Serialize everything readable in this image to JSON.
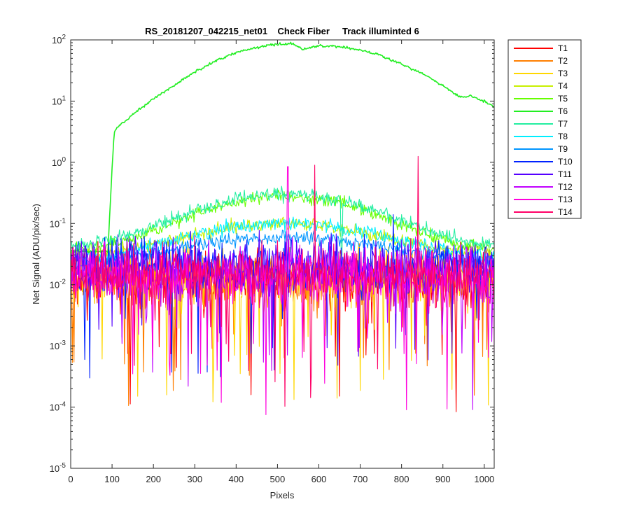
{
  "chart_data": {
    "type": "line",
    "title": "RS_20181207_042215_net01    Check Fiber     Track illuminted 6",
    "xlabel": "Pixels",
    "ylabel": "Net Signal (ADU/pix/sec)",
    "xlim": [
      0,
      1024
    ],
    "ylim": [
      1e-05,
      100
    ],
    "yscale": "log",
    "grid": false,
    "legend_position": "outside-right",
    "x_ticks": [
      {
        "value": 0,
        "label": "0"
      },
      {
        "value": 100,
        "label": "100"
      },
      {
        "value": 200,
        "label": "200"
      },
      {
        "value": 300,
        "label": "300"
      },
      {
        "value": 400,
        "label": "400"
      },
      {
        "value": 500,
        "label": "500"
      },
      {
        "value": 600,
        "label": "600"
      },
      {
        "value": 700,
        "label": "700"
      },
      {
        "value": 800,
        "label": "800"
      },
      {
        "value": 900,
        "label": "900"
      },
      {
        "value": 1000,
        "label": "1000"
      }
    ],
    "y_ticks": [
      {
        "value": 1e-05,
        "base": "10",
        "exp": "-5"
      },
      {
        "value": 0.0001,
        "base": "10",
        "exp": "-4"
      },
      {
        "value": 0.001,
        "base": "10",
        "exp": "-3"
      },
      {
        "value": 0.01,
        "base": "10",
        "exp": "-2"
      },
      {
        "value": 0.1,
        "base": "10",
        "exp": "-1"
      },
      {
        "value": 1,
        "base": "10",
        "exp": "0"
      },
      {
        "value": 10,
        "base": "10",
        "exp": "1"
      },
      {
        "value": 100,
        "base": "10",
        "exp": "2"
      }
    ],
    "series": [
      {
        "name": "T1",
        "color": "#ff0000",
        "profile": "noise",
        "level": 0.012,
        "spikes": []
      },
      {
        "name": "T2",
        "color": "#ff7f00",
        "profile": "noise",
        "level": 0.012,
        "spikes": []
      },
      {
        "name": "T3",
        "color": "#ffd700",
        "profile": "noise",
        "level": 0.013,
        "spikes": []
      },
      {
        "name": "T4",
        "color": "#c8f000",
        "profile": "dome",
        "base": 0.03,
        "peak": 0.1,
        "center": 520,
        "width": 260,
        "spikes": []
      },
      {
        "name": "T5",
        "color": "#66ff00",
        "profile": "dome",
        "base": 0.035,
        "peak": 0.28,
        "center": 520,
        "width": 240,
        "spikes": []
      },
      {
        "name": "T6",
        "color": "#22ee22",
        "x": [
          0,
          90,
          100,
          105,
          110,
          150,
          200,
          250,
          300,
          350,
          400,
          450,
          500,
          530,
          550,
          560,
          570,
          600,
          650,
          700,
          750,
          800,
          850,
          900,
          930,
          945,
          965,
          1000,
          1024
        ],
        "y": [
          0.035,
          0.035,
          0.8,
          3.0,
          3.6,
          6.0,
          11.0,
          18.0,
          30.0,
          45.0,
          62.0,
          75.0,
          85.0,
          88.0,
          80.0,
          70.0,
          72.0,
          80.0,
          78.0,
          68.0,
          55.0,
          40.0,
          28.0,
          18.0,
          13.0,
          11.5,
          12.0,
          10.0,
          8.0
        ]
      },
      {
        "name": "T7",
        "color": "#22eea0",
        "profile": "dome",
        "base": 0.04,
        "peak": 0.3,
        "center": 520,
        "width": 250,
        "spikes": [
          {
            "x": 655,
            "y": 0.03
          }
        ]
      },
      {
        "name": "T8",
        "color": "#00eeff",
        "profile": "dome",
        "base": 0.025,
        "peak": 0.1,
        "center": 520,
        "width": 280,
        "spikes": []
      },
      {
        "name": "T9",
        "color": "#0095ff",
        "profile": "dome",
        "base": 0.02,
        "peak": 0.06,
        "center": 520,
        "width": 300,
        "spikes": []
      },
      {
        "name": "T10",
        "color": "#0022ff",
        "profile": "noise",
        "level": 0.02,
        "spikes": [
          {
            "x": 780,
            "y": 0.14
          }
        ]
      },
      {
        "name": "T11",
        "color": "#5500ff",
        "profile": "noise",
        "level": 0.02,
        "spikes": []
      },
      {
        "name": "T12",
        "color": "#c000ff",
        "profile": "noise",
        "level": 0.015,
        "spikes": []
      },
      {
        "name": "T13",
        "color": "#ff00dd",
        "profile": "noise",
        "level": 0.014,
        "spikes": [
          {
            "x": 525,
            "y": 0.85
          }
        ]
      },
      {
        "name": "T14",
        "color": "#ff0066",
        "profile": "noise",
        "level": 0.014,
        "spikes": [
          {
            "x": 590,
            "y": 0.9
          },
          {
            "x": 840,
            "y": 1.25
          }
        ]
      }
    ]
  }
}
